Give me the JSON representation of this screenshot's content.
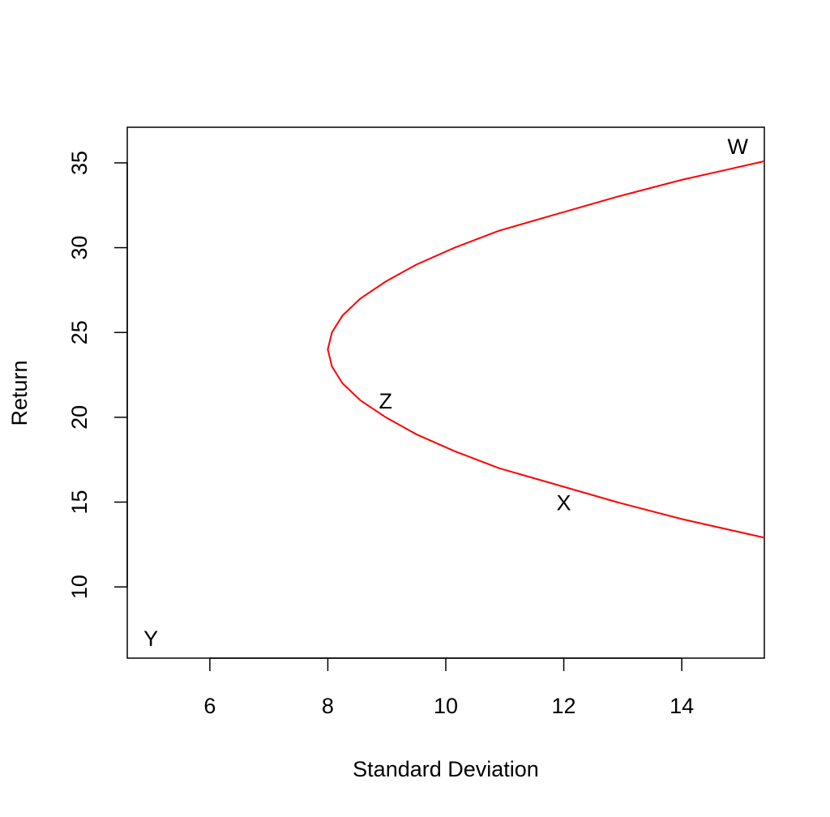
{
  "chart_data": {
    "type": "line",
    "title": "",
    "xlabel": "Standard Deviation",
    "ylabel": "Return",
    "xlim": [
      4.6,
      15.4
    ],
    "ylim": [
      5.8,
      37.1
    ],
    "x_ticks": [
      6,
      8,
      10,
      12,
      14
    ],
    "y_ticks": [
      10,
      15,
      20,
      25,
      30,
      35
    ],
    "grid": false,
    "series": [
      {
        "color": "#ff0000",
        "points": [
          {
            "x": 15.4,
            "y": 12.9
          },
          {
            "x": 14.0,
            "y": 14.0
          },
          {
            "x": 12.9,
            "y": 15.0
          },
          {
            "x": 11.9,
            "y": 16.0
          },
          {
            "x": 10.9,
            "y": 17.0
          },
          {
            "x": 10.15,
            "y": 18.0
          },
          {
            "x": 9.5,
            "y": 19.0
          },
          {
            "x": 8.98,
            "y": 20.0
          },
          {
            "x": 8.55,
            "y": 21.0
          },
          {
            "x": 8.25,
            "y": 22.0
          },
          {
            "x": 8.07,
            "y": 23.0
          },
          {
            "x": 8.0,
            "y": 24.0
          },
          {
            "x": 8.07,
            "y": 25.0
          },
          {
            "x": 8.25,
            "y": 26.0
          },
          {
            "x": 8.55,
            "y": 27.0
          },
          {
            "x": 8.98,
            "y": 28.0
          },
          {
            "x": 9.5,
            "y": 29.0
          },
          {
            "x": 10.15,
            "y": 30.0
          },
          {
            "x": 10.9,
            "y": 31.0
          },
          {
            "x": 11.9,
            "y": 32.0
          },
          {
            "x": 12.9,
            "y": 33.0
          },
          {
            "x": 14.0,
            "y": 34.0
          },
          {
            "x": 15.4,
            "y": 35.1
          }
        ]
      }
    ],
    "annotations": [
      {
        "label": "W",
        "x": 14.95,
        "y": 36.0
      },
      {
        "label": "Z",
        "x": 8.98,
        "y": 21.0
      },
      {
        "label": "X",
        "x": 12.0,
        "y": 15.0
      },
      {
        "label": "Y",
        "x": 5.0,
        "y": 7.0
      }
    ]
  }
}
